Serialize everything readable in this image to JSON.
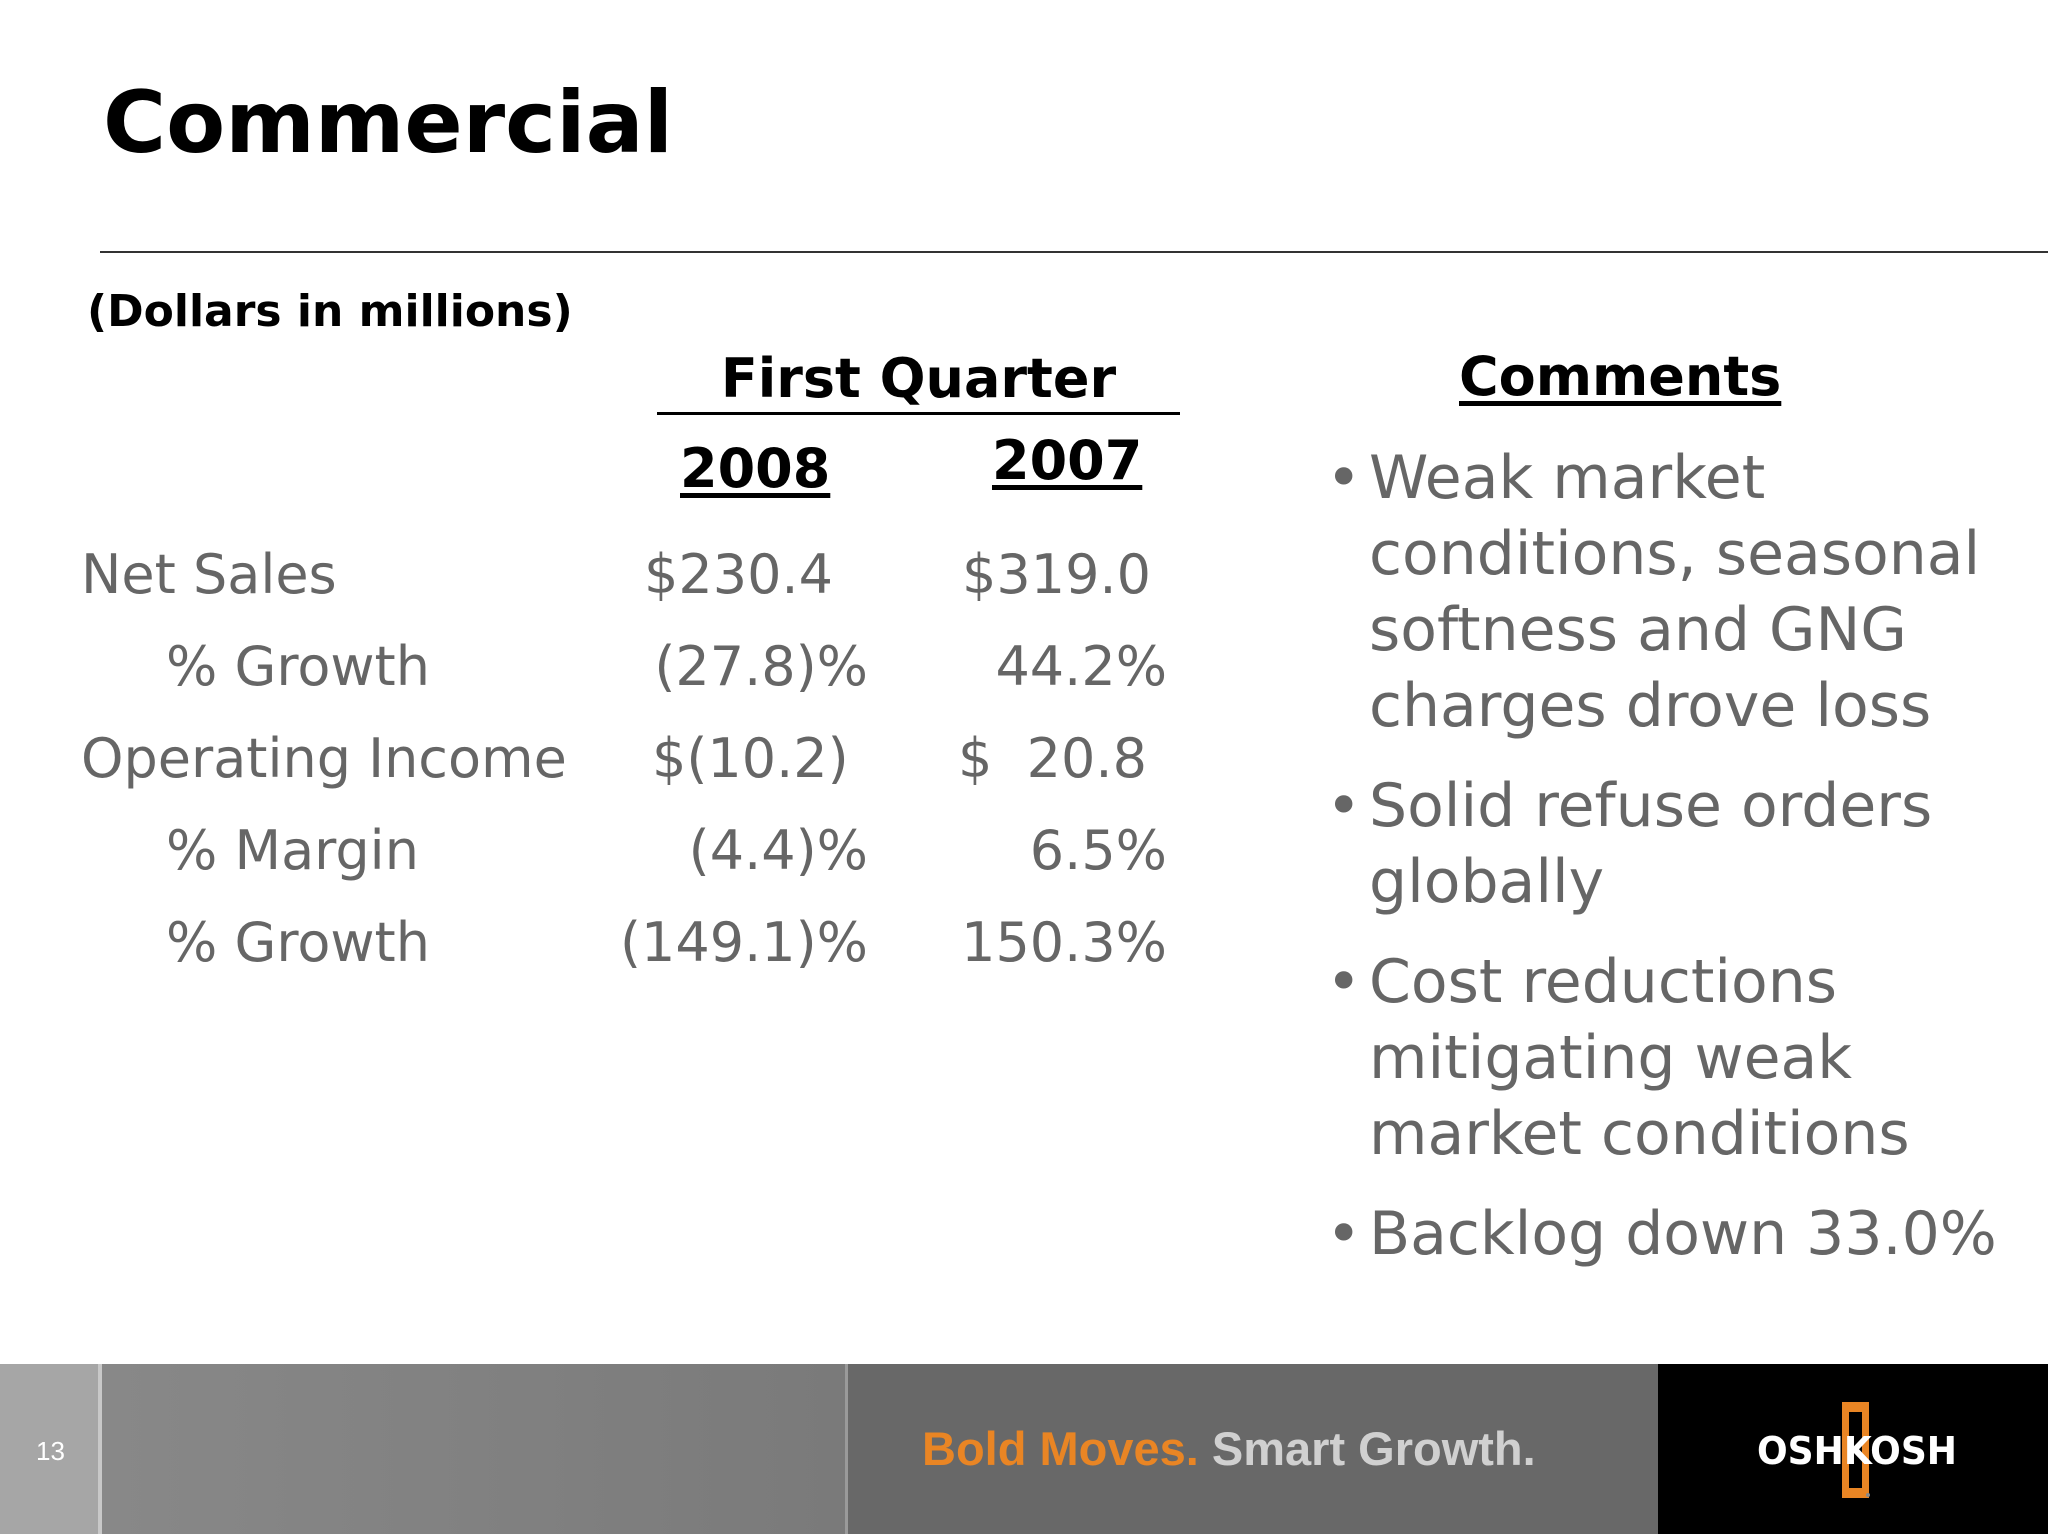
{
  "slide": {
    "title": "Commercial",
    "units_note": "(Dollars in millions)",
    "page_number": "13"
  },
  "table": {
    "group_header": "First Quarter",
    "columns": [
      "2008",
      "2007"
    ],
    "rows": [
      {
        "label": "Net Sales",
        "v2008": "$230.4",
        "v2007": "$319.0"
      },
      {
        "label": "% Growth",
        "v2008": "(27.8)%",
        "v2007": "44.2%"
      },
      {
        "label": "Operating Income",
        "v2008": "$(10.2)",
        "v2007": "$  20.8"
      },
      {
        "label": "% Margin",
        "v2008": "(4.4)%",
        "v2007": "6.5%"
      },
      {
        "label": "% Growth",
        "v2008": "(149.1)%",
        "v2007": "150.3%"
      }
    ]
  },
  "comments": {
    "heading": "Comments",
    "bullets": [
      "Weak market conditions, seasonal softness and GNG charges drove loss",
      "Solid refuse orders globally",
      "Cost reductions mitigating weak market conditions",
      "Backlog down 33.0%"
    ]
  },
  "footer": {
    "tagline_bold": "Bold Moves.",
    "tagline_smart": "Smart Growth.",
    "logo_text": "OSHKOSH",
    "colors": {
      "accent": "#e98524",
      "logo_bg": "#000000"
    }
  }
}
